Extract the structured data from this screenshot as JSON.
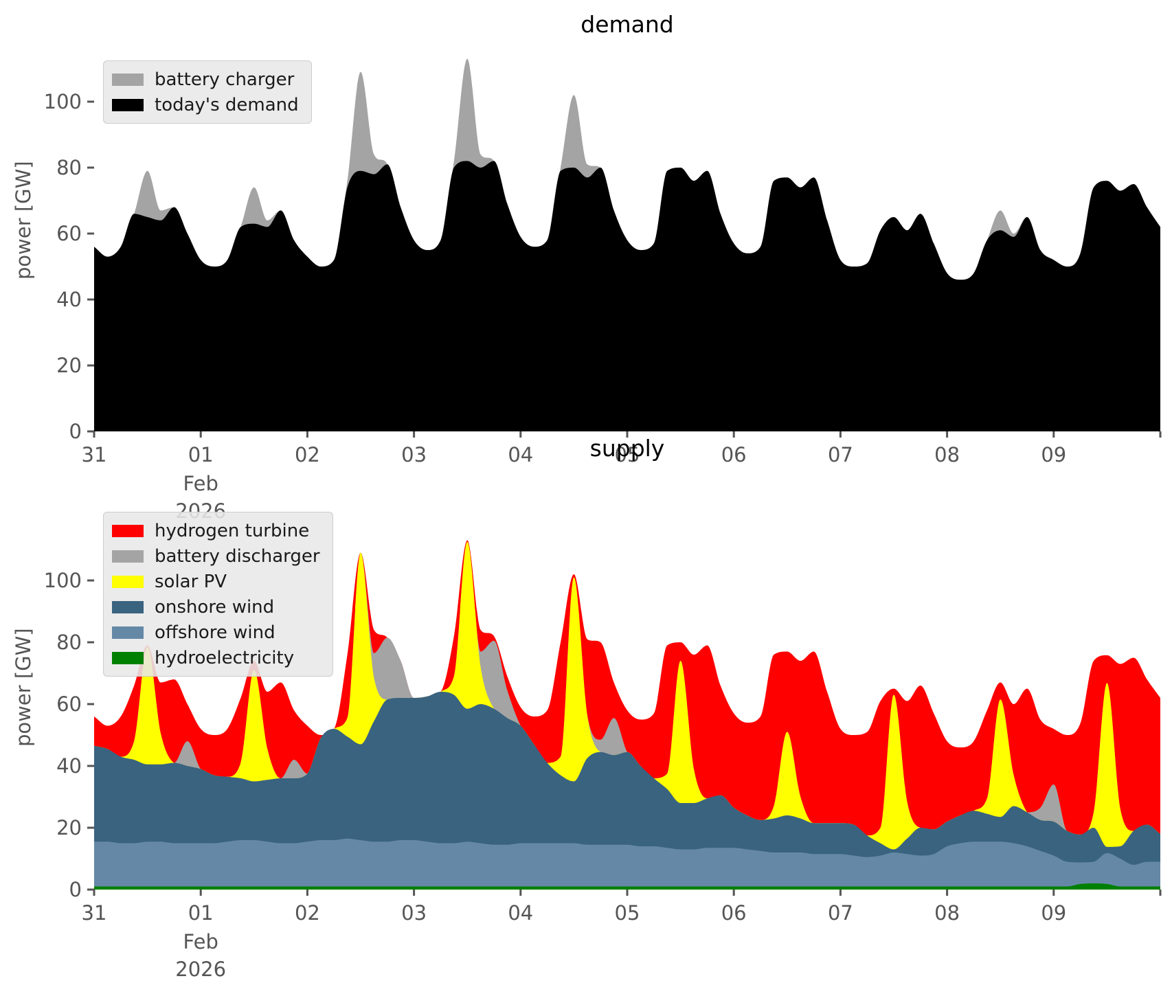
{
  "figure": {
    "background": "#ffffff",
    "tick_color": "#555555",
    "title_color": "#000000"
  },
  "chart_data": [
    {
      "type": "area",
      "title": "demand",
      "ylabel": "power [GW]",
      "stacked": true,
      "legend_position": "upper left",
      "x_unit": "days since 2026-01-31 00:00",
      "x_step_days": 0.125,
      "x_range_days": [
        0,
        10
      ],
      "ylim": [
        0,
        115
      ],
      "grid": false,
      "y_ticks": [
        0,
        20,
        40,
        60,
        80,
        100
      ],
      "x_ticks": [
        {
          "day": 0,
          "label": "31"
        },
        {
          "day": 1,
          "label": "01"
        },
        {
          "day": 2,
          "label": "02"
        },
        {
          "day": 3,
          "label": "03"
        },
        {
          "day": 4,
          "label": "04"
        },
        {
          "day": 5,
          "label": "05"
        },
        {
          "day": 6,
          "label": "06"
        },
        {
          "day": 7,
          "label": "07"
        },
        {
          "day": 8,
          "label": "08"
        },
        {
          "day": 9,
          "label": "09"
        },
        {
          "day": 10,
          "label": ""
        }
      ],
      "x_sub_label": {
        "day": 1,
        "lines": [
          "Feb",
          "2026"
        ]
      },
      "legend": [
        {
          "label": "battery charger",
          "color": "#a4a4a4"
        },
        {
          "label": "today's demand",
          "color": "#000000"
        }
      ],
      "series": [
        {
          "name": "today's demand",
          "color": "#000000",
          "values": [
            56,
            53,
            56,
            66,
            65,
            64,
            68,
            60,
            52,
            50,
            52,
            62,
            63,
            62,
            67,
            58,
            53,
            50,
            52,
            74,
            79,
            78,
            81,
            68,
            58,
            55,
            58,
            80,
            82,
            80,
            82,
            69,
            59,
            56,
            58,
            79,
            80,
            77,
            80,
            67,
            58,
            55,
            57,
            79,
            80,
            76,
            79,
            66,
            57,
            54,
            56,
            76,
            77,
            74,
            77,
            64,
            52,
            50,
            51,
            61,
            65,
            61,
            66,
            57,
            48,
            46,
            48,
            58,
            61,
            59,
            65,
            55,
            52,
            50,
            54,
            74,
            76,
            73,
            75,
            68,
            62
          ]
        },
        {
          "name": "battery charger",
          "color": "#a4a4a4",
          "values": [
            0,
            0,
            0,
            0,
            14,
            3,
            0,
            0,
            0,
            0,
            0,
            0,
            11,
            2,
            0,
            0,
            0,
            0,
            0,
            2,
            30,
            6,
            0,
            0,
            0,
            0,
            0,
            2,
            31,
            4,
            0,
            0,
            0,
            0,
            0,
            1,
            22,
            4,
            0,
            0,
            0,
            0,
            0,
            0,
            0,
            0,
            0,
            0,
            0,
            0,
            0,
            0,
            0,
            0,
            0,
            0,
            0,
            0,
            0,
            0,
            0,
            0,
            0,
            0,
            0,
            0,
            0,
            0,
            6,
            1,
            0,
            0,
            0,
            0,
            0,
            0,
            0,
            0,
            0,
            0,
            0
          ]
        }
      ]
    },
    {
      "type": "area",
      "title": "supply",
      "ylabel": "power [GW]",
      "stacked": true,
      "legend_position": "upper left",
      "x_unit": "days since 2026-01-31 00:00",
      "x_step_days": 0.125,
      "x_range_days": [
        0,
        10
      ],
      "ylim": [
        0,
        120
      ],
      "grid": false,
      "y_ticks": [
        0,
        20,
        40,
        60,
        80,
        100
      ],
      "x_ticks": [
        {
          "day": 0,
          "label": "31"
        },
        {
          "day": 1,
          "label": "01"
        },
        {
          "day": 2,
          "label": "02"
        },
        {
          "day": 3,
          "label": "03"
        },
        {
          "day": 4,
          "label": "04"
        },
        {
          "day": 5,
          "label": "05"
        },
        {
          "day": 6,
          "label": "06"
        },
        {
          "day": 7,
          "label": "07"
        },
        {
          "day": 8,
          "label": "08"
        },
        {
          "day": 9,
          "label": "09"
        },
        {
          "day": 10,
          "label": ""
        }
      ],
      "x_sub_label": {
        "day": 1,
        "lines": [
          "Feb",
          "2026"
        ]
      },
      "legend": [
        {
          "label": "hydrogen turbine",
          "color": "#ff0000"
        },
        {
          "label": "battery discharger",
          "color": "#a4a4a4"
        },
        {
          "label": "solar PV",
          "color": "#ffff00"
        },
        {
          "label": "onshore wind",
          "color": "#3a6380"
        },
        {
          "label": "offshore wind",
          "color": "#6488a6"
        },
        {
          "label": "hydroelectricity",
          "color": "#008000"
        }
      ],
      "series": [
        {
          "name": "hydroelectricity",
          "color": "#008000",
          "values": [
            1,
            1,
            1,
            1,
            1,
            1,
            1,
            1,
            1,
            1,
            1,
            1,
            1,
            1,
            1,
            1,
            1,
            1,
            1,
            1,
            1,
            1,
            1,
            1,
            1,
            1,
            1,
            1,
            1,
            1,
            1,
            1,
            1,
            1,
            1,
            1,
            1,
            1,
            1,
            1,
            1,
            1,
            1,
            1,
            1,
            1,
            1,
            1,
            1,
            1,
            1,
            1,
            1,
            1,
            1,
            1,
            1,
            1,
            1,
            1,
            1,
            1,
            1,
            1,
            1,
            1,
            1,
            1,
            1,
            1,
            1,
            1,
            1,
            1,
            1.8,
            2,
            1.8,
            1,
            1,
            1,
            1
          ]
        },
        {
          "name": "offshore wind",
          "color": "#6488a6",
          "values": [
            14.5,
            14.5,
            14,
            14,
            14.5,
            14.5,
            14,
            14,
            14,
            14,
            14.5,
            15,
            15,
            14.5,
            14,
            14,
            14.5,
            15,
            15,
            15.5,
            15,
            14.5,
            14.5,
            15,
            15,
            14.5,
            14,
            14,
            14.5,
            14,
            13.5,
            13.5,
            14,
            14,
            14,
            14,
            14,
            13.5,
            13.5,
            13.5,
            13.5,
            13,
            13,
            12.5,
            12,
            12,
            12.5,
            12.5,
            12.5,
            12,
            11.5,
            11,
            11,
            11,
            10.5,
            10.5,
            10.5,
            10,
            9.5,
            10,
            11,
            10.5,
            10,
            10.5,
            13,
            14,
            14.5,
            14.5,
            14.5,
            14,
            13,
            11.5,
            10,
            8,
            7,
            7,
            10,
            9,
            7,
            8,
            8
          ]
        },
        {
          "name": "onshore wind",
          "color": "#3a6380",
          "values": [
            31,
            30,
            28,
            27,
            25,
            25,
            26,
            25,
            24,
            22,
            21,
            20,
            19,
            20,
            21,
            21,
            22,
            33,
            36,
            33,
            31,
            39,
            46,
            46,
            46,
            47,
            49,
            48,
            43,
            45,
            44,
            41,
            38,
            32,
            26,
            22,
            20,
            28,
            30,
            29,
            30,
            26,
            22,
            19,
            15,
            15,
            16,
            17,
            13,
            11,
            10,
            11,
            12,
            11,
            10,
            10,
            10,
            10,
            7,
            4,
            1,
            5,
            9,
            8,
            8,
            9,
            10,
            9,
            8,
            12,
            11,
            10,
            11,
            10,
            9,
            11,
            2,
            4,
            11,
            12,
            9
          ]
        },
        {
          "name": "solar PV",
          "color": "#ffff00",
          "values": [
            0,
            0,
            0,
            6,
            38,
            10,
            0,
            0,
            0,
            0,
            0,
            5,
            36,
            10,
            0,
            0,
            0,
            0,
            0,
            6,
            62,
            14,
            0,
            0,
            0,
            0,
            0,
            6,
            54,
            12,
            0,
            0,
            0,
            0,
            0,
            6,
            66,
            14,
            0,
            0,
            0,
            0,
            0,
            5,
            46,
            11,
            0,
            0,
            0,
            0,
            0,
            4,
            27,
            7,
            0,
            0,
            0,
            0,
            0,
            5,
            50,
            12,
            0,
            0,
            0,
            0,
            0,
            5,
            38,
            10,
            0,
            0,
            0,
            0,
            0,
            5,
            53,
            12,
            0,
            0,
            0
          ]
        },
        {
          "name": "battery discharger",
          "color": "#a4a4a4",
          "values": [
            0,
            0,
            0,
            0,
            0,
            0,
            0,
            8,
            0,
            0,
            0,
            0,
            0,
            0,
            0,
            6,
            0,
            0,
            0,
            0,
            0,
            8,
            20,
            12,
            0,
            0,
            0,
            0,
            0,
            5,
            22,
            9,
            0,
            0,
            0,
            0,
            0,
            0,
            4,
            12,
            0,
            0,
            0,
            0,
            0,
            0,
            0,
            0,
            0,
            0,
            0,
            0,
            0,
            0,
            0,
            0,
            0,
            0,
            0,
            0,
            0,
            0,
            0,
            0,
            0,
            0,
            0,
            0,
            0,
            0,
            0,
            4,
            12,
            0,
            0,
            0,
            0,
            0,
            0,
            0,
            0
          ]
        },
        {
          "name": "hydrogen turbine",
          "color": "#ff0000",
          "values": [
            9.5,
            7.5,
            13,
            18,
            0.5,
            16.5,
            27,
            12,
            13,
            13,
            15.5,
            21,
            3,
            18.5,
            31,
            16,
            15.5,
            1,
            0,
            20.5,
            0,
            7.5,
            0,
            0,
            0,
            0,
            0,
            13,
            0.5,
            7,
            1.5,
            4.5,
            6,
            9,
            17,
            37,
            1,
            24.5,
            31.5,
            11.5,
            13.5,
            15,
            21,
            41.5,
            6,
            37,
            49.5,
            35.5,
            30.5,
            30,
            33.5,
            49,
            26,
            44,
            55.5,
            42.5,
            30.5,
            29,
            33.5,
            41,
            2,
            32.5,
            46,
            37.5,
            26,
            22,
            22.5,
            28.5,
            5.5,
            23,
            40,
            28.5,
            18,
            31,
            36,
            49,
            9,
            47,
            56,
            47,
            44
          ]
        }
      ]
    }
  ]
}
